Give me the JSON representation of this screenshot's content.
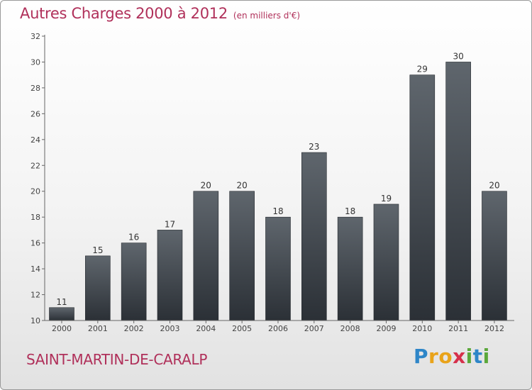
{
  "header": {
    "title": "Autres Charges 2000 à 2012",
    "unit": "(en milliers d'€)"
  },
  "footer": {
    "commune": "SAINT-MARTIN-DE-CARALP",
    "brand": "Proxiti",
    "brand_letters": [
      {
        "ch": "P",
        "color": "#2e86c8"
      },
      {
        "ch": "r",
        "color": "#e9a31a"
      },
      {
        "ch": "o",
        "color": "#e9a31a"
      },
      {
        "ch": "x",
        "color": "#d6304b"
      },
      {
        "ch": "i",
        "color": "#5aa83a"
      },
      {
        "ch": "t",
        "color": "#2e86c8"
      },
      {
        "ch": "i",
        "color": "#5aa83a"
      }
    ]
  },
  "chart_data": {
    "type": "bar",
    "title": "Autres Charges 2000 à 2012",
    "subtitle": "(en milliers d'€)",
    "categories": [
      "2000",
      "2001",
      "2002",
      "2003",
      "2004",
      "2005",
      "2006",
      "2007",
      "2008",
      "2009",
      "2010",
      "2011",
      "2012"
    ],
    "values": [
      11,
      15,
      16,
      17,
      20,
      20,
      18,
      23,
      18,
      19,
      29,
      30,
      20
    ],
    "ylim": [
      10,
      32
    ],
    "yticks": [
      10,
      12,
      14,
      16,
      18,
      20,
      22,
      24,
      26,
      28,
      30,
      32
    ],
    "grid": false,
    "bar_color_top": "#5f666d",
    "bar_color_bottom": "#2b3036",
    "label_color": "#333333"
  }
}
